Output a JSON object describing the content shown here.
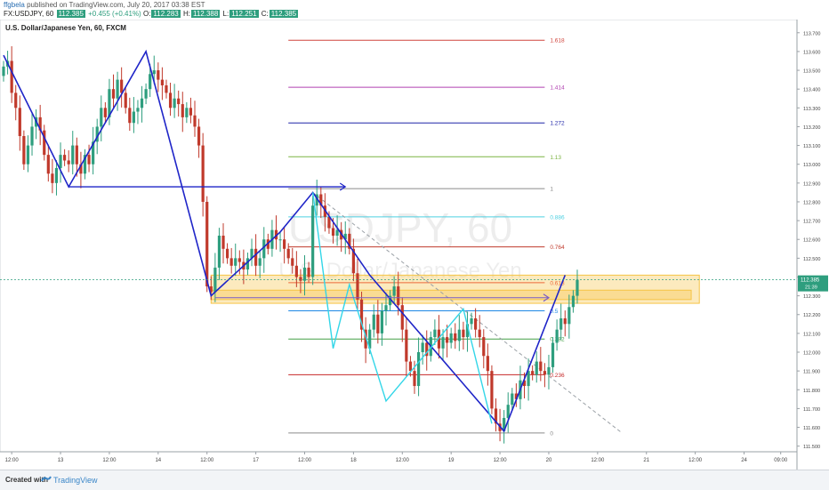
{
  "header": {
    "publisher": "ffgbela",
    "published_text": "published on TradingView.com, July 20, 2017 03:38 EST",
    "symbol": "FX:USDJPY, 60",
    "last": "112.385",
    "change": "+0.455 (+0.41%)",
    "o_label": "O:",
    "o_value": "112.283",
    "h_label": "H:",
    "h_value": "112.388",
    "l_label": "L:",
    "l_value": "112.251",
    "c_label": "C:",
    "c_value": "112.385"
  },
  "footer": {
    "created_with": "Created with",
    "brand": "TradingView"
  },
  "colors": {
    "up": "#2e9e7e",
    "down": "#c0392b",
    "pattern": "#1f25c8",
    "cyan_pattern": "#33d6e8",
    "zone": "#f6c445"
  },
  "chart_data": {
    "type": "candlestick",
    "title": "U.S. Dollar/Japanese Yen, 60, FXCM",
    "watermark": "USDJPY, 60",
    "watermark_sub": "U.S. Dollar/Japanese Yen",
    "y_ticks": [
      113.7,
      113.6,
      113.5,
      113.4,
      113.3,
      113.2,
      113.1,
      113.0,
      112.9,
      112.8,
      112.7,
      112.6,
      112.5,
      112.4,
      112.3,
      112.2,
      112.1,
      112.0,
      111.9,
      111.8,
      111.7,
      111.6,
      111.5
    ],
    "y_tick_labels": [
      "113.700",
      "113.600",
      "113.500",
      "113.400",
      "113.300",
      "113.200",
      "113.100",
      "113.000",
      "112.900",
      "112.800",
      "112.700",
      "112.600",
      "112.500",
      "112.400",
      "112.300",
      "112.200",
      "112.100",
      "112.000",
      "111.900",
      "111.800",
      "111.700",
      "111.600",
      "111.500"
    ],
    "ylim": [
      111.47,
      113.77
    ],
    "price_tag": "112.385",
    "price_tag_sub": "21:39",
    "x_ticks": [
      {
        "label": "12:00",
        "i": 2
      },
      {
        "label": "13",
        "i": 14
      },
      {
        "label": "12:00",
        "i": 26
      },
      {
        "label": "14",
        "i": 38
      },
      {
        "label": "12:00",
        "i": 50
      },
      {
        "label": "17",
        "i": 62
      },
      {
        "label": "12:00",
        "i": 74
      },
      {
        "label": "18",
        "i": 86
      },
      {
        "label": "12:00",
        "i": 98
      },
      {
        "label": "19",
        "i": 110
      },
      {
        "label": "12:00",
        "i": 122
      },
      {
        "label": "20",
        "i": 134
      },
      {
        "label": "12:00",
        "i": 146
      },
      {
        "label": "21",
        "i": 158
      },
      {
        "label": "12:00",
        "i": 170
      },
      {
        "label": "24",
        "i": 182
      },
      {
        "label": "09:00",
        "i": 191
      }
    ],
    "x_index_range": [
      0,
      195
    ],
    "closes": [
      113.52,
      113.55,
      113.38,
      113.3,
      113.15,
      113.0,
      113.1,
      113.2,
      113.25,
      113.18,
      113.05,
      112.95,
      112.9,
      112.98,
      113.05,
      113.02,
      113.0,
      113.1,
      113.0,
      112.95,
      113.05,
      113.0,
      113.12,
      113.2,
      113.3,
      113.25,
      113.4,
      113.35,
      113.45,
      113.38,
      113.3,
      113.22,
      113.28,
      113.3,
      113.35,
      113.4,
      113.48,
      113.5,
      113.45,
      113.42,
      113.38,
      113.3,
      113.35,
      113.32,
      113.25,
      113.3,
      113.26,
      113.2,
      113.1,
      112.8,
      112.35,
      112.32,
      112.45,
      112.62,
      112.55,
      112.5,
      112.46,
      112.5,
      112.48,
      112.44,
      112.5,
      112.55,
      112.46,
      112.5,
      112.6,
      112.55,
      112.65,
      112.6,
      112.6,
      112.55,
      112.5,
      112.46,
      112.4,
      112.38,
      112.45,
      112.4,
      112.78,
      112.84,
      112.78,
      112.72,
      112.66,
      112.62,
      112.65,
      112.6,
      112.63,
      112.55,
      112.42,
      112.28,
      112.12,
      112.02,
      112.12,
      112.2,
      112.1,
      112.22,
      112.25,
      112.3,
      112.35,
      112.25,
      112.12,
      111.95,
      111.9,
      111.82,
      112.0,
      112.05,
      111.98,
      112.08,
      112.12,
      112.02,
      112.08,
      112.05,
      112.1,
      112.06,
      112.12,
      112.08,
      112.15,
      112.18,
      112.12,
      112.08,
      111.98,
      111.9,
      111.7,
      111.62,
      111.58,
      111.65,
      111.72,
      111.78,
      111.75,
      111.85,
      111.82,
      111.9,
      111.88,
      111.95,
      111.9,
      111.88,
      111.92,
      112.05,
      112.12,
      112.18,
      112.15,
      112.24,
      112.3,
      112.385
    ],
    "levels": [
      {
        "label": "1.618",
        "value": 113.66,
        "color": "#d0453d"
      },
      {
        "label": "1.414",
        "value": 113.41,
        "color": "#b040b0"
      },
      {
        "label": "1.272",
        "value": 113.22,
        "color": "#1f25a8"
      },
      {
        "label": "1.13",
        "value": 113.04,
        "color": "#7cb342"
      },
      {
        "label": "1",
        "value": 112.87,
        "color": "#8a8a8a"
      },
      {
        "label": "0.886",
        "value": 112.72,
        "color": "#4dd0e1"
      },
      {
        "label": "0.764",
        "value": 112.56,
        "color": "#c0392b"
      },
      {
        "label": "0.618",
        "value": 112.37,
        "color": "#e53935"
      },
      {
        "label": "0.5",
        "value": 112.22,
        "color": "#1e88e5"
      },
      {
        "label": "0.382",
        "value": 112.07,
        "color": "#43a047"
      },
      {
        "label": "0.236",
        "value": 111.88,
        "color": "#c62828"
      },
      {
        "label": "0",
        "value": 111.57,
        "color": "#8a8a8a"
      }
    ],
    "zones": [
      {
        "i1": 51,
        "i2": 171,
        "y_top": 112.41,
        "y_bottom": 112.26
      },
      {
        "i1": 51,
        "i2": 169,
        "y_top": 112.33,
        "y_bottom": 112.28
      }
    ],
    "pattern_blue": [
      {
        "i": 0,
        "v": 113.58
      },
      {
        "i": 16,
        "v": 112.88
      },
      {
        "i": 35,
        "v": 113.6
      },
      {
        "i": 51,
        "v": 112.3
      },
      {
        "i": 68,
        "v": 112.64
      },
      {
        "i": 76,
        "v": 112.85
      },
      {
        "i": 90,
        "v": 112.41
      },
      {
        "i": 123,
        "v": 111.58
      },
      {
        "i": 138,
        "v": 112.41
      }
    ],
    "pattern_cyan": [
      {
        "i": 76,
        "v": 112.85
      },
      {
        "i": 81,
        "v": 112.02
      },
      {
        "i": 85,
        "v": 112.36
      },
      {
        "i": 94,
        "v": 111.74
      },
      {
        "i": 113,
        "v": 112.23
      },
      {
        "i": 120,
        "v": 111.62
      }
    ],
    "arrows": [
      {
        "i1": 16,
        "i2": 84,
        "v": 112.88
      },
      {
        "i1": 52,
        "i2": 134,
        "v": 112.29
      }
    ],
    "dashed_trend": {
      "i1": 76,
      "i2": 152,
      "v1": 112.85,
      "v2": 111.57
    }
  }
}
